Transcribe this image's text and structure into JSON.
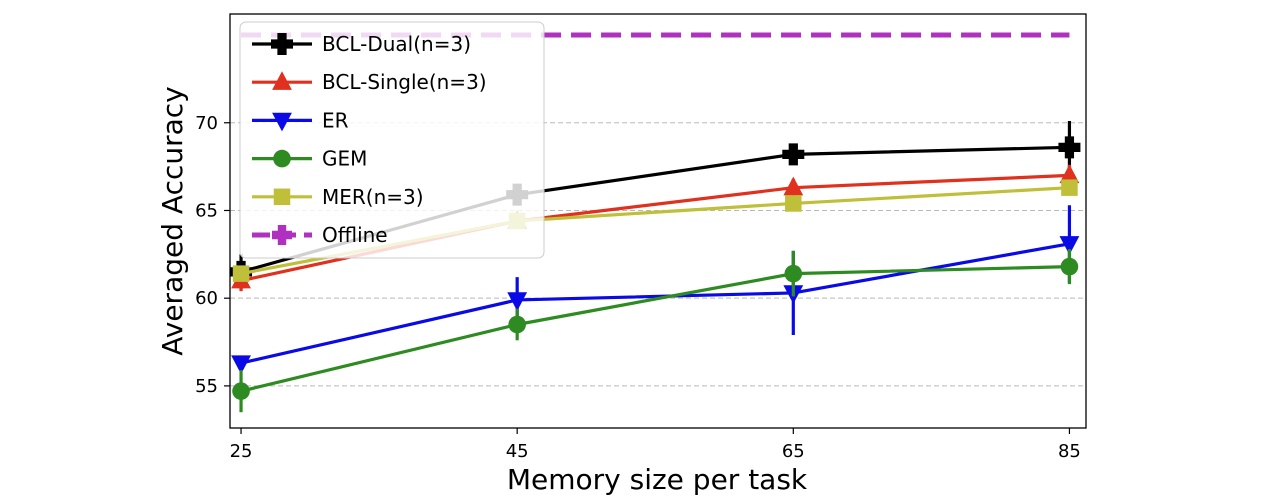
{
  "chart_data": {
    "type": "line",
    "xlabel": "Memory size per task",
    "ylabel": "Averaged Accuracy",
    "x": [
      25,
      45,
      65,
      85
    ],
    "xticks": [
      25,
      45,
      65,
      85
    ],
    "yticks": [
      55,
      60,
      65,
      70
    ],
    "xlim": [
      24.2,
      86.2
    ],
    "ylim": [
      52.6,
      76.2
    ],
    "grid": "horizontal dashed",
    "legend_position": "upper-left",
    "series": [
      {
        "name": "BCL-Dual(n=3)",
        "color": "#000000",
        "marker": "plus",
        "linestyle": "solid",
        "values": [
          61.5,
          65.9,
          68.2,
          68.6
        ],
        "errors": [
          1.0,
          0.3,
          0.4,
          1.5
        ]
      },
      {
        "name": "BCL-Single(n=3)",
        "color": "#e0301e",
        "marker": "triangle-up",
        "linestyle": "solid",
        "values": [
          61.0,
          64.4,
          66.3,
          67.0
        ],
        "errors": [
          0.6,
          0.3,
          0.5,
          0.6
        ]
      },
      {
        "name": "ER",
        "color": "#0a0ae6",
        "marker": "triangle-down",
        "linestyle": "solid",
        "values": [
          56.3,
          59.9,
          60.3,
          63.1
        ],
        "errors": [
          0.3,
          1.3,
          2.4,
          2.2
        ]
      },
      {
        "name": "GEM",
        "color": "#2e8b22",
        "marker": "circle",
        "linestyle": "solid",
        "values": [
          54.7,
          58.5,
          61.4,
          61.8
        ],
        "errors": [
          1.2,
          0.9,
          1.3,
          1.0
        ]
      },
      {
        "name": "MER(n=3)",
        "color": "#bfbf3a",
        "marker": "square",
        "linestyle": "solid",
        "values": [
          61.4,
          64.4,
          65.4,
          66.3
        ],
        "errors": [
          0.4,
          0.2,
          0.3,
          0.4
        ]
      },
      {
        "name": "Offline",
        "color": "#b030c0",
        "marker": "plus",
        "linestyle": "dashed",
        "values": [
          75.0,
          75.0,
          75.0,
          75.0
        ],
        "errors": [
          0,
          0,
          0,
          0
        ]
      }
    ]
  }
}
